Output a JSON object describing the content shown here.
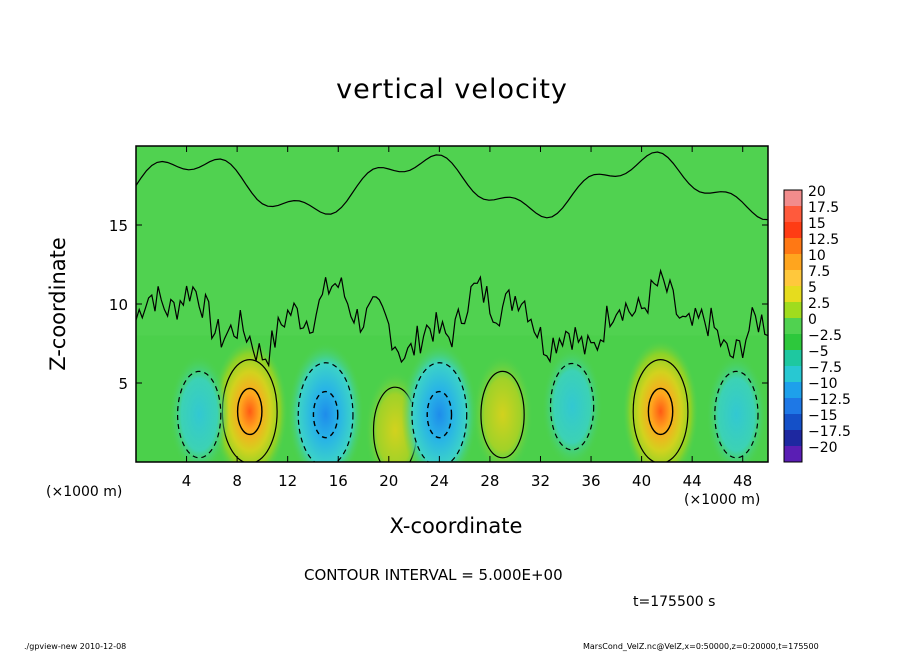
{
  "chart_data": {
    "type": "heatmap",
    "title": "vertical velocity",
    "xlabel": "X-coordinate",
    "ylabel": "Z-coordinate",
    "x_unit_label": "(×1000 m)",
    "x_ticks": [
      4,
      8,
      12,
      16,
      20,
      24,
      28,
      32,
      36,
      40,
      44,
      48
    ],
    "y_ticks": [
      5,
      10,
      15
    ],
    "xlim": [
      0,
      50
    ],
    "ylim": [
      0,
      20
    ],
    "contour_interval_text": "CONTOUR INTERVAL = 5.000E+00",
    "time_text": "t=175500 s",
    "colorbar": {
      "levels": [
        -20,
        -17.5,
        -15,
        -12.5,
        -10,
        -7.5,
        -5,
        -2.5,
        0,
        2.5,
        5,
        7.5,
        10,
        12.5,
        15,
        17.5,
        20
      ],
      "labels": [
        "20",
        "17.5",
        "15",
        "12.5",
        "10",
        "7.5",
        "5",
        "2.5",
        "0",
        "−2.5",
        "−5",
        "−7.5",
        "−10",
        "−12.5",
        "−15",
        "−17.5",
        "−20"
      ],
      "colors": [
        "#f28c8c",
        "#ff5a3c",
        "#ff3c14",
        "#ff7814",
        "#ffa51e",
        "#ffc83c",
        "#e6dc1e",
        "#a0dc1e",
        "#50d250",
        "#2dc83c",
        "#1ec8a0",
        "#28c8d2",
        "#1ea0eb",
        "#1e78e6",
        "#1450c8",
        "#1e28a0",
        "#5a1eb4"
      ]
    },
    "features": [
      {
        "x": 9,
        "z": 3.2,
        "w": 12,
        "kind": "updraft"
      },
      {
        "x": 41.5,
        "z": 3.2,
        "w": 13,
        "kind": "updraft"
      },
      {
        "x": 29,
        "z": 3.0,
        "w": 4,
        "kind": "updraft"
      },
      {
        "x": 20.5,
        "z": 2.0,
        "w": 2,
        "kind": "updraft"
      },
      {
        "x": 15,
        "z": 3.0,
        "w": -9,
        "kind": "downdraft"
      },
      {
        "x": 24,
        "z": 3.0,
        "w": -8,
        "kind": "downdraft"
      },
      {
        "x": 34.5,
        "z": 3.5,
        "w": -6,
        "kind": "downdraft"
      },
      {
        "x": 5,
        "z": 3.0,
        "w": -5,
        "kind": "downdraft"
      },
      {
        "x": 47.5,
        "z": 3.0,
        "w": -4,
        "kind": "downdraft"
      }
    ]
  },
  "footer": {
    "left": "./gpview-new   2010-12-08",
    "right": "MarsCond_VelZ.nc@VelZ,x=0:50000,z=0:20000,t=175500"
  }
}
